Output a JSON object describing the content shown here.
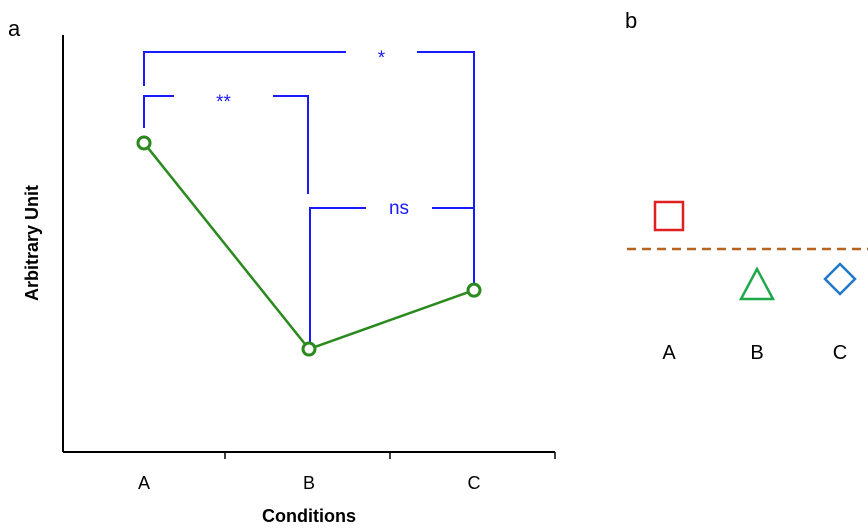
{
  "panels": {
    "a_label": "a",
    "b_label": "b"
  },
  "chart_data": [
    {
      "panel": "a",
      "type": "line",
      "categories": [
        "A",
        "B",
        "C"
      ],
      "values": [
        0.78,
        0.22,
        0.38
      ],
      "ylim": [
        0,
        1
      ],
      "xlabel": "Conditions",
      "ylabel": "Arbitrary Unit",
      "y_tick_labels": "none",
      "grid": false,
      "colors": {
        "line": "#2a8a1e",
        "marker_face": "#ffffff",
        "bracket": "#1a1aff",
        "axis": "#000000"
      },
      "significance": [
        {
          "from": "A",
          "to": "C",
          "label": "*"
        },
        {
          "from": "A",
          "to": "B",
          "label": "**"
        },
        {
          "from": "B",
          "to": "C",
          "label": "ns"
        }
      ]
    },
    {
      "panel": "b",
      "type": "scatter",
      "categories": [
        "A",
        "B",
        "C"
      ],
      "values": [
        0.55,
        -0.6,
        -0.5
      ],
      "reference_line": 0,
      "markers": [
        {
          "category": "A",
          "shape": "square",
          "color": "#e02020"
        },
        {
          "category": "B",
          "shape": "triangle",
          "color": "#1fa84a"
        },
        {
          "category": "C",
          "shape": "diamond",
          "color": "#1f78c8"
        }
      ],
      "reference_line_color": "#b5651d",
      "grid": false
    }
  ]
}
